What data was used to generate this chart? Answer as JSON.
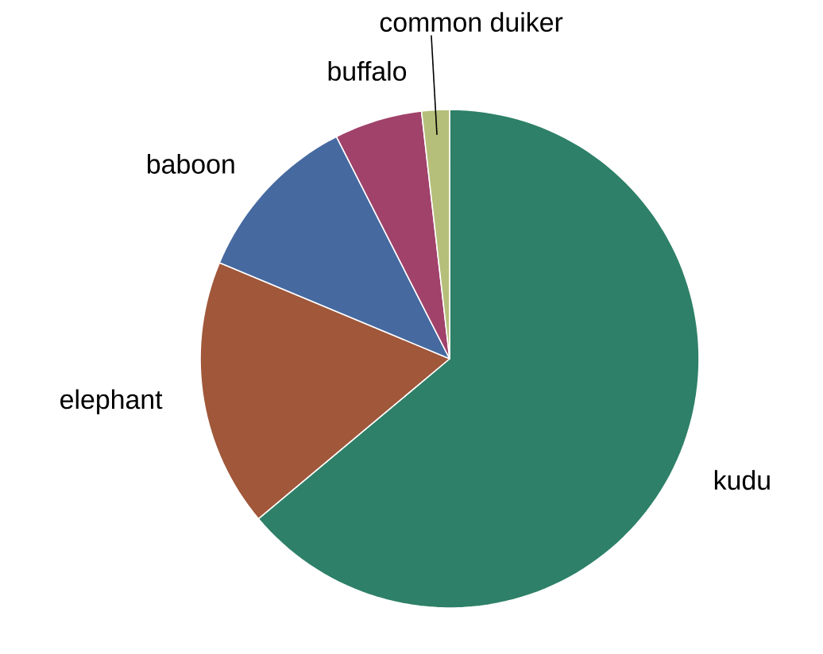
{
  "chart_data": {
    "type": "pie",
    "categories": [
      "kudu",
      "elephant",
      "baboon",
      "buffalo",
      "common duiker"
    ],
    "values": [
      63.9,
      17.4,
      11.2,
      5.7,
      1.8
    ],
    "colors": [
      "#2e8068",
      "#a0573a",
      "#4669a0",
      "#a0426a",
      "#b6bf7a"
    ]
  }
}
